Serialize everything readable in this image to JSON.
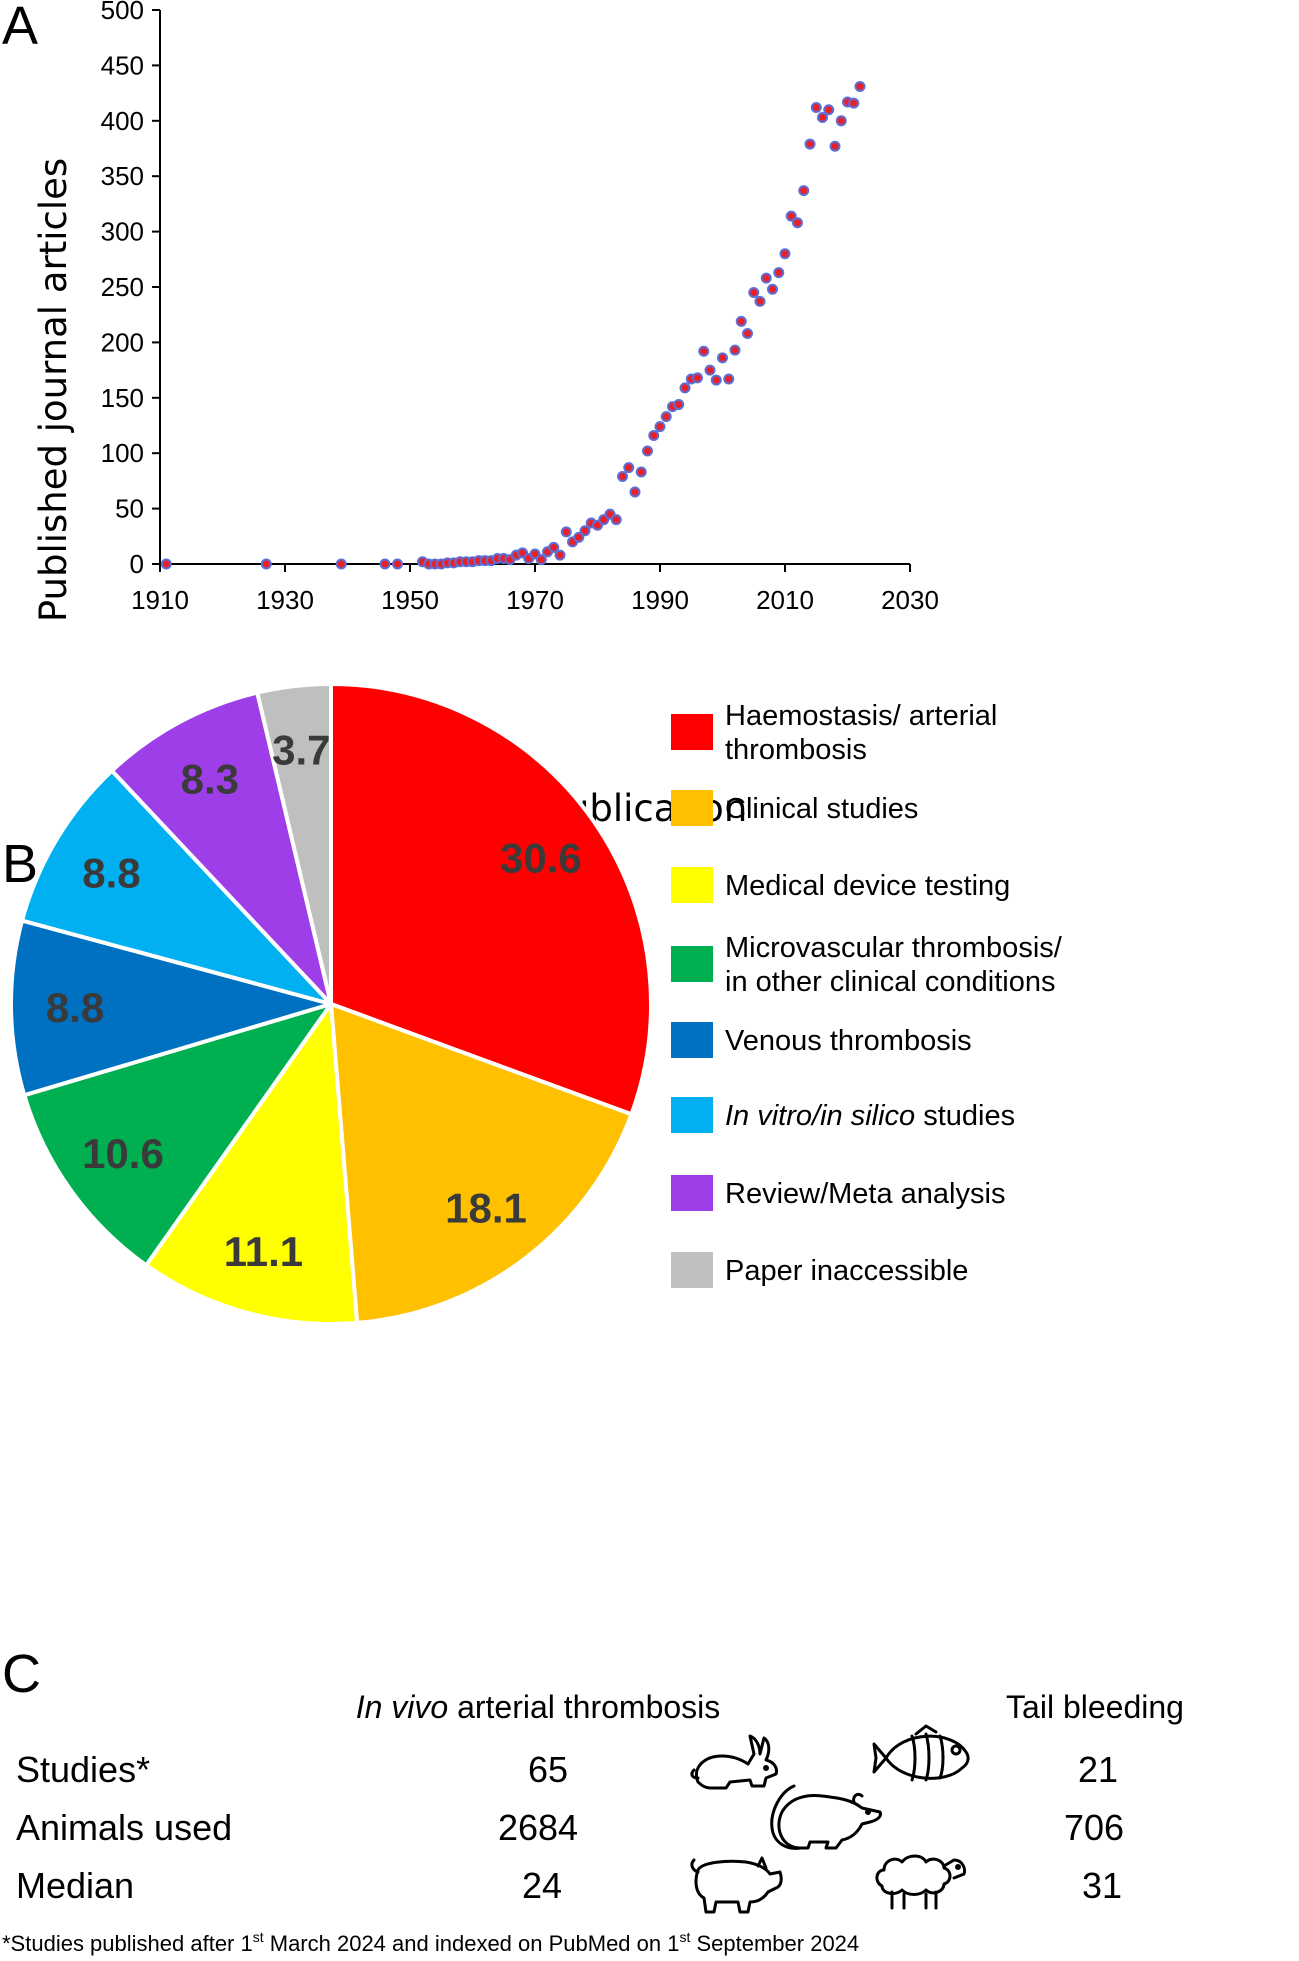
{
  "panel_letters": {
    "a": "A",
    "b": "B",
    "c": "C"
  },
  "chart_data": [
    {
      "type": "scatter",
      "title": "",
      "xlabel": "Year of Publication",
      "ylabel": "Published journal articles",
      "xlim": [
        1910,
        2030
      ],
      "ylim": [
        0,
        500
      ],
      "xticks": [
        1910,
        1930,
        1950,
        1970,
        1990,
        2010,
        2030
      ],
      "yticks": [
        0,
        50,
        100,
        150,
        200,
        250,
        300,
        350,
        400,
        450,
        500
      ],
      "grid": false,
      "marker_fill": "#e8202a",
      "marker_edge": "#5b6fd6",
      "points": [
        [
          1911,
          0
        ],
        [
          1927,
          0
        ],
        [
          1939,
          0
        ],
        [
          1946,
          0
        ],
        [
          1948,
          0
        ],
        [
          1952,
          2
        ],
        [
          1953,
          0
        ],
        [
          1954,
          0
        ],
        [
          1955,
          0
        ],
        [
          1956,
          1
        ],
        [
          1957,
          1
        ],
        [
          1958,
          2
        ],
        [
          1959,
          2
        ],
        [
          1960,
          2
        ],
        [
          1961,
          3
        ],
        [
          1962,
          3
        ],
        [
          1963,
          3
        ],
        [
          1964,
          5
        ],
        [
          1965,
          5
        ],
        [
          1966,
          4
        ],
        [
          1967,
          8
        ],
        [
          1968,
          10
        ],
        [
          1969,
          5
        ],
        [
          1970,
          9
        ],
        [
          1971,
          4
        ],
        [
          1972,
          11
        ],
        [
          1973,
          15
        ],
        [
          1974,
          8
        ],
        [
          1975,
          29
        ],
        [
          1976,
          20
        ],
        [
          1977,
          24
        ],
        [
          1978,
          30
        ],
        [
          1979,
          37
        ],
        [
          1980,
          35
        ],
        [
          1981,
          40
        ],
        [
          1982,
          45
        ],
        [
          1983,
          40
        ],
        [
          1984,
          79
        ],
        [
          1985,
          87
        ],
        [
          1986,
          65
        ],
        [
          1987,
          83
        ],
        [
          1988,
          102
        ],
        [
          1989,
          116
        ],
        [
          1990,
          124
        ],
        [
          1991,
          133
        ],
        [
          1992,
          142
        ],
        [
          1993,
          144
        ],
        [
          1994,
          159
        ],
        [
          1995,
          167
        ],
        [
          1996,
          168
        ],
        [
          1997,
          192
        ],
        [
          1998,
          175
        ],
        [
          1999,
          166
        ],
        [
          2000,
          186
        ],
        [
          2001,
          167
        ],
        [
          2002,
          193
        ],
        [
          2003,
          219
        ],
        [
          2004,
          208
        ],
        [
          2005,
          245
        ],
        [
          2006,
          237
        ],
        [
          2007,
          258
        ],
        [
          2008,
          248
        ],
        [
          2009,
          263
        ],
        [
          2010,
          280
        ],
        [
          2011,
          314
        ],
        [
          2012,
          308
        ],
        [
          2013,
          337
        ],
        [
          2014,
          379
        ],
        [
          2015,
          412
        ],
        [
          2016,
          403
        ],
        [
          2017,
          410
        ],
        [
          2018,
          377
        ],
        [
          2019,
          400
        ],
        [
          2020,
          417
        ],
        [
          2021,
          416
        ],
        [
          2022,
          431
        ]
      ]
    },
    {
      "type": "pie",
      "title": "",
      "legend_position": "right",
      "slices": [
        {
          "label": "Haemostasis/ arterial thrombosis",
          "lines": [
            "Haemostasis/ arterial",
            "thrombosis"
          ],
          "value": 30.6,
          "display": "30.6",
          "color": "#ff0000"
        },
        {
          "label": "Clinical studies",
          "lines": [
            "Clinical studies"
          ],
          "value": 18.1,
          "display": "18.1",
          "color": "#ffc000"
        },
        {
          "label": "Medical device testing",
          "lines": [
            "Medical device testing"
          ],
          "value": 11.1,
          "display": "11.1",
          "color": "#ffff00"
        },
        {
          "label": "Microvascular thrombosis/ in other clinical conditions",
          "lines": [
            "Microvascular thrombosis/",
            "in other clinical conditions"
          ],
          "value": 10.6,
          "display": "10.6",
          "color": "#00b050"
        },
        {
          "label": "Venous thrombosis",
          "lines": [
            "Venous thrombosis"
          ],
          "value": 8.8,
          "display": "8.8",
          "color": "#0070c0"
        },
        {
          "label": "In vitro/in silico studies",
          "lines": [
            "In vitro/in silico studies"
          ],
          "italic_part": "In vitro/in silico",
          "plain_part": " studies",
          "value": 8.8,
          "display": "8.8",
          "color": "#00b0f0"
        },
        {
          "label": "Review/Meta analysis",
          "lines": [
            "Review/Meta analysis"
          ],
          "value": 8.3,
          "display": "8.3",
          "color": "#9e3ee8"
        },
        {
          "label": "Paper inaccessible",
          "lines": [
            "Paper inaccessible"
          ],
          "value": 3.7,
          "display": "3.7",
          "color": "#bfbfbf"
        }
      ]
    },
    {
      "type": "table",
      "columns": [
        {
          "italic": "In vivo ",
          "plain": "arterial thrombosis"
        },
        {
          "italic": "",
          "plain": "Tail bleeding"
        }
      ],
      "rows": [
        {
          "label": "Studies*",
          "values": [
            "65",
            "21"
          ]
        },
        {
          "label": "Animals used",
          "values": [
            "2684",
            "706"
          ]
        },
        {
          "label": "Median",
          "values": [
            "24",
            "31"
          ]
        }
      ],
      "icons": [
        "rabbit-icon",
        "fish-icon",
        "rat-icon",
        "pig-icon",
        "sheep-icon"
      ]
    }
  ],
  "footnote": {
    "p1": "*Studies published after 1",
    "s1": "st",
    "p2": " March 2024 and indexed on PubMed on 1",
    "s2": "st",
    "p3": " September 2024"
  }
}
